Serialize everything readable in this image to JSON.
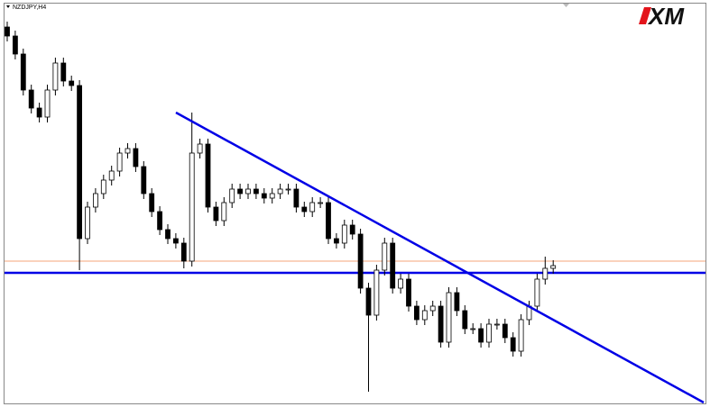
{
  "chart_data": {
    "type": "candlestick",
    "title": "NZDJPY,H4",
    "logo": "XM",
    "ylim": [
      0,
      442
    ],
    "open": [
      417,
      407,
      387,
      347,
      327,
      317,
      347,
      377,
      357,
      352,
      182,
      217,
      232,
      247,
      257,
      277,
      282,
      262,
      232,
      212,
      192,
      182,
      177,
      157,
      277,
      287,
      217,
      202,
      222,
      237,
      232,
      237,
      232,
      227,
      232,
      237,
      237,
      217,
      212,
      222,
      222,
      182,
      177,
      197,
      187,
      127,
      97,
      147,
      177,
      127,
      137,
      107,
      92,
      102,
      107,
      67,
      122,
      102,
      82,
      82,
      67,
      87,
      87,
      72,
      57,
      92,
      107,
      137,
      149
    ],
    "high": [
      423,
      413,
      393,
      353,
      333,
      353,
      383,
      383,
      363,
      358,
      223,
      238,
      253,
      263,
      283,
      288,
      288,
      268,
      238,
      218,
      198,
      188,
      183,
      322,
      293,
      293,
      223,
      228,
      243,
      243,
      243,
      243,
      238,
      238,
      243,
      243,
      243,
      223,
      228,
      228,
      228,
      188,
      203,
      203,
      193,
      133,
      153,
      183,
      183,
      143,
      143,
      113,
      108,
      113,
      113,
      128,
      128,
      108,
      88,
      88,
      93,
      93,
      93,
      78,
      98,
      113,
      143,
      162,
      158
    ],
    "low": [
      401,
      381,
      341,
      321,
      311,
      311,
      341,
      351,
      346,
      147,
      176,
      211,
      226,
      241,
      251,
      271,
      256,
      226,
      206,
      186,
      176,
      171,
      149,
      151,
      271,
      211,
      196,
      196,
      216,
      226,
      226,
      226,
      221,
      221,
      226,
      231,
      211,
      206,
      206,
      216,
      176,
      171,
      171,
      181,
      121,
      12,
      91,
      141,
      121,
      121,
      101,
      86,
      86,
      96,
      61,
      61,
      96,
      76,
      76,
      61,
      61,
      81,
      66,
      51,
      51,
      86,
      101,
      131,
      143
    ],
    "close": [
      407,
      387,
      347,
      327,
      317,
      347,
      377,
      357,
      352,
      182,
      217,
      232,
      247,
      257,
      277,
      282,
      262,
      232,
      212,
      192,
      182,
      177,
      157,
      277,
      287,
      217,
      202,
      222,
      237,
      232,
      237,
      232,
      227,
      232,
      237,
      237,
      217,
      212,
      222,
      222,
      182,
      177,
      197,
      187,
      127,
      97,
      147,
      177,
      127,
      137,
      107,
      92,
      102,
      107,
      67,
      122,
      102,
      82,
      82,
      67,
      87,
      87,
      72,
      57,
      92,
      107,
      137,
      149,
      152
    ],
    "hlines": [
      {
        "value": 157,
        "color": "#f4a57a"
      },
      {
        "value": 144,
        "color": "#0000e6"
      }
    ],
    "up_color": "#ffffff",
    "down_color": "#000000"
  }
}
